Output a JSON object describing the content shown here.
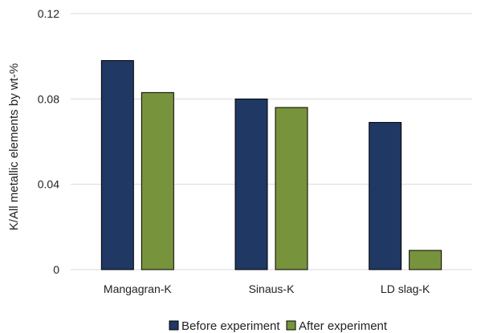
{
  "chart_data": {
    "type": "bar",
    "categories": [
      "Mangagran-K",
      "Sinaus-K",
      "LD slag-K"
    ],
    "series": [
      {
        "name": "Before experiment",
        "values": [
          0.098,
          0.08,
          0.069
        ],
        "color": "#1f3864"
      },
      {
        "name": "After experiment",
        "values": [
          0.083,
          0.076,
          0.009
        ],
        "color": "#77933c"
      }
    ],
    "ylabel": "K/All metallic elements by wt-%",
    "xlabel": "",
    "ylim": [
      0,
      0.12
    ],
    "yticks": [
      "0",
      "0.04",
      "0.08",
      "0.12"
    ],
    "ytick_values": [
      0,
      0.04,
      0.08,
      0.12
    ],
    "grid": true,
    "legend_position": "bottom"
  }
}
